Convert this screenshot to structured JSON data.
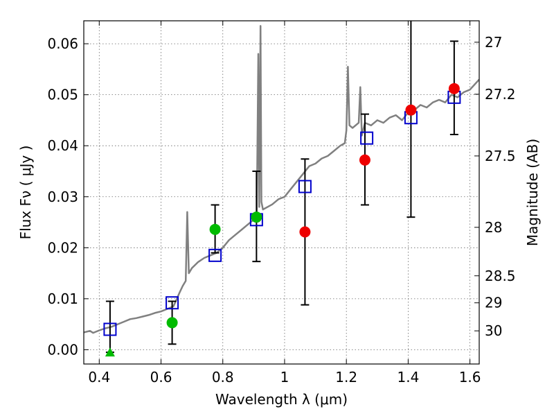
{
  "chart_data": {
    "type": "scatter",
    "xlabel": "Wavelength  λ (μm)",
    "ylabel": "Flux  Fν  ( μJy )",
    "ylabel_right": "Magnitude (AB)",
    "xlim": [
      0.35,
      1.63
    ],
    "ylim": [
      -0.0028,
      0.0645
    ],
    "x_ticks": [
      0.4,
      0.6,
      0.8,
      1.0,
      1.2,
      1.4,
      1.6
    ],
    "x_tick_labels": [
      "0.4",
      "0.6",
      "0.8",
      "1",
      "1.2",
      "1.4",
      "1.6"
    ],
    "y_ticks": [
      0.0,
      0.01,
      0.02,
      0.03,
      0.04,
      0.05,
      0.06
    ],
    "y_tick_labels": [
      "0.00",
      "0.01",
      "0.02",
      "0.03",
      "0.04",
      "0.05",
      "0.06"
    ],
    "right_ticks": [
      {
        "label": "27",
        "flux": 0.0603
      },
      {
        "label": "27.2",
        "flux": 0.0501
      },
      {
        "label": "27.5",
        "flux": 0.038
      },
      {
        "label": "28",
        "flux": 0.024
      },
      {
        "label": "28.5",
        "flux": 0.0145
      },
      {
        "label": "29",
        "flux": 0.0092
      },
      {
        "label": "30",
        "flux": 0.0037
      }
    ],
    "grid": true,
    "colors": {
      "spectrum": "#808080",
      "model_photometry": "#0000cc",
      "green_points": "#00bb00",
      "red_points": "#ee0000",
      "error_bars": "#000000"
    },
    "spectrum": {
      "x": [
        0.35,
        0.37,
        0.38,
        0.4,
        0.42,
        0.44,
        0.46,
        0.48,
        0.5,
        0.52,
        0.54,
        0.56,
        0.58,
        0.6,
        0.62,
        0.64,
        0.65,
        0.66,
        0.67,
        0.68,
        0.685,
        0.69,
        0.7,
        0.72,
        0.74,
        0.76,
        0.78,
        0.8,
        0.82,
        0.84,
        0.86,
        0.88,
        0.9,
        0.91,
        0.915,
        0.918,
        0.922,
        0.925,
        0.93,
        0.96,
        0.98,
        1.0,
        1.02,
        1.04,
        1.06,
        1.08,
        1.1,
        1.12,
        1.14,
        1.16,
        1.18,
        1.195,
        1.2,
        1.205,
        1.21,
        1.22,
        1.24,
        1.245,
        1.25,
        1.26,
        1.28,
        1.3,
        1.32,
        1.34,
        1.36,
        1.38,
        1.4,
        1.42,
        1.44,
        1.46,
        1.48,
        1.5,
        1.52,
        1.54,
        1.56,
        1.58,
        1.6,
        1.63
      ],
      "y": [
        0.0034,
        0.0037,
        0.0033,
        0.0038,
        0.0042,
        0.0045,
        0.005,
        0.0055,
        0.006,
        0.0062,
        0.0065,
        0.0068,
        0.0072,
        0.0075,
        0.008,
        0.0085,
        0.0098,
        0.0112,
        0.0125,
        0.0135,
        0.027,
        0.015,
        0.016,
        0.0172,
        0.018,
        0.0185,
        0.019,
        0.02,
        0.0215,
        0.0225,
        0.0235,
        0.0245,
        0.0255,
        0.0265,
        0.058,
        0.028,
        0.0635,
        0.029,
        0.0275,
        0.0285,
        0.0295,
        0.03,
        0.0315,
        0.033,
        0.0345,
        0.036,
        0.0365,
        0.0375,
        0.038,
        0.039,
        0.04,
        0.0405,
        0.043,
        0.0555,
        0.044,
        0.0435,
        0.0445,
        0.0515,
        0.042,
        0.0445,
        0.044,
        0.045,
        0.0445,
        0.0455,
        0.046,
        0.045,
        0.0465,
        0.047,
        0.048,
        0.0475,
        0.0485,
        0.049,
        0.0485,
        0.05,
        0.0495,
        0.0505,
        0.051,
        0.053
      ]
    },
    "model_photometry": {
      "marker": "square-open",
      "x": [
        0.435,
        0.636,
        0.775,
        0.909,
        1.066,
        1.266,
        1.409,
        1.549
      ],
      "y": [
        0.004,
        0.0092,
        0.0185,
        0.0255,
        0.032,
        0.0415,
        0.0455,
        0.0495
      ]
    },
    "green_points": {
      "marker": "circle",
      "x": [
        0.636,
        0.775,
        0.909
      ],
      "y": [
        0.0053,
        0.0236,
        0.026
      ],
      "err_low": [
        0.0042,
        0.0046,
        0.0087
      ],
      "err_high": [
        0.0042,
        0.0048,
        0.009
      ]
    },
    "green_triangle": {
      "marker": "triangle",
      "x": [
        0.435
      ],
      "y": [
        -0.0005
      ],
      "err_high": [
        0.01
      ]
    },
    "red_points": {
      "marker": "circle",
      "x": [
        1.066,
        1.26,
        1.409,
        1.549
      ],
      "y": [
        0.0231,
        0.0372,
        0.047,
        0.0512
      ],
      "err_low": [
        0.0143,
        0.0088,
        0.021,
        0.009
      ],
      "err_high": [
        0.0143,
        0.009,
        0.018,
        0.0093
      ]
    }
  }
}
